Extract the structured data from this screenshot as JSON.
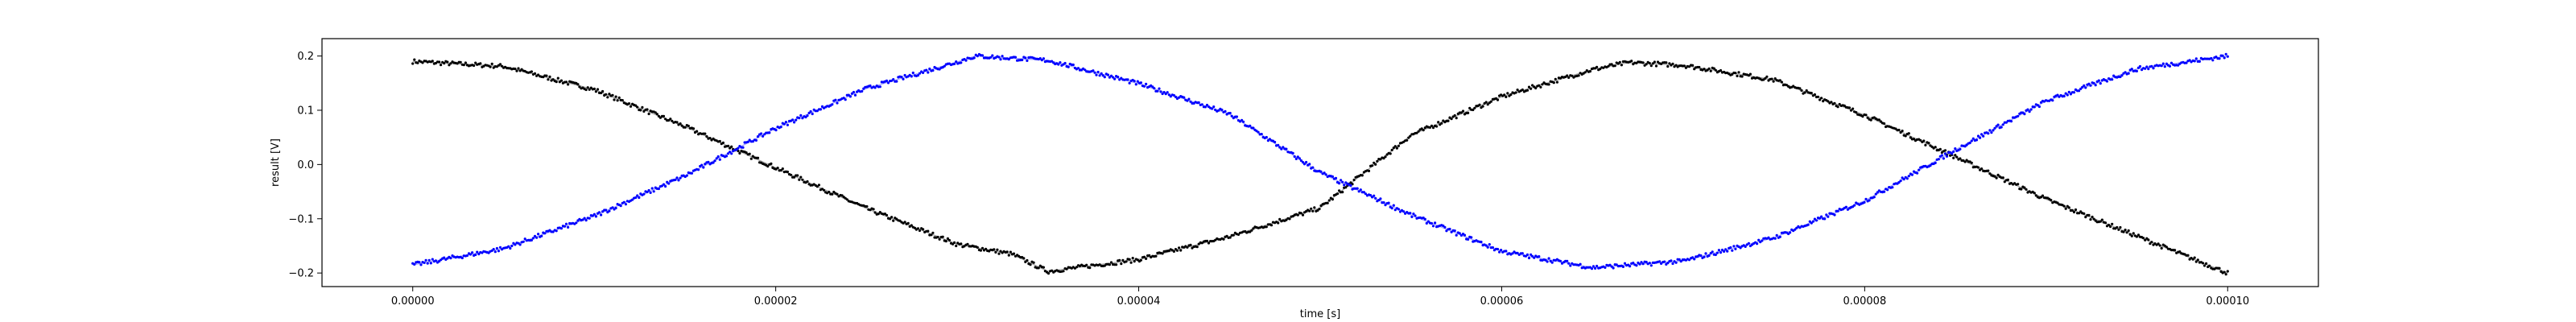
{
  "chart_data": {
    "type": "scatter",
    "title": "",
    "xlabel": "time [s]",
    "ylabel": "result [V]",
    "xlim": [
      -5e-06,
      0.000105
    ],
    "ylim": [
      -0.225,
      0.232
    ],
    "x_ticks": [
      0.0,
      2e-05,
      4e-05,
      6e-05,
      8e-05,
      0.0001
    ],
    "x_tick_labels": [
      "0.00000",
      "0.00002",
      "0.00004",
      "0.00006",
      "0.00008",
      "0.00010"
    ],
    "y_ticks": [
      -0.2,
      -0.1,
      0.0,
      0.1,
      0.2
    ],
    "y_tick_labels": [
      "−0.2",
      "−0.1",
      "0.0",
      "0.1",
      "0.2"
    ],
    "grid": false,
    "legend": "none",
    "series": [
      {
        "color": "#000000",
        "marker": "dot",
        "x": [
          0.0,
          5e-06,
          1e-05,
          1.5e-05,
          2e-05,
          2.5e-05,
          3e-05,
          3.3e-05,
          3.5e-05,
          4e-05,
          4.5e-05,
          5e-05,
          5.5e-05,
          6e-05,
          6.5e-05,
          6.7e-05,
          7e-05,
          7.5e-05,
          8e-05,
          8.5e-05,
          9e-05,
          9.5e-05,
          0.0001
        ],
        "y": [
          0.19,
          0.181,
          0.138,
          0.07,
          -0.006,
          -0.081,
          -0.147,
          -0.165,
          -0.197,
          -0.175,
          -0.133,
          -0.08,
          0.054,
          0.125,
          0.175,
          0.188,
          0.183,
          0.156,
          0.091,
          0.014,
          -0.064,
          -0.132,
          -0.2
        ]
      },
      {
        "color": "#0000ff",
        "marker": "dot",
        "x": [
          0.0,
          5e-06,
          1e-05,
          1.5e-05,
          2e-05,
          2.5e-05,
          3e-05,
          3.1e-05,
          3.5e-05,
          4e-05,
          4.5e-05,
          5e-05,
          5.5e-05,
          6e-05,
          6.5e-05,
          7e-05,
          7.5e-05,
          8e-05,
          8.5e-05,
          9e-05,
          9.5e-05,
          0.0001
        ],
        "y": [
          -0.185,
          -0.155,
          -0.095,
          -0.021,
          0.067,
          0.14,
          0.189,
          0.2,
          0.192,
          0.149,
          0.093,
          -0.015,
          -0.093,
          -0.16,
          -0.19,
          -0.178,
          -0.135,
          -0.067,
          0.027,
          0.117,
          0.176,
          0.2
        ]
      }
    ]
  }
}
